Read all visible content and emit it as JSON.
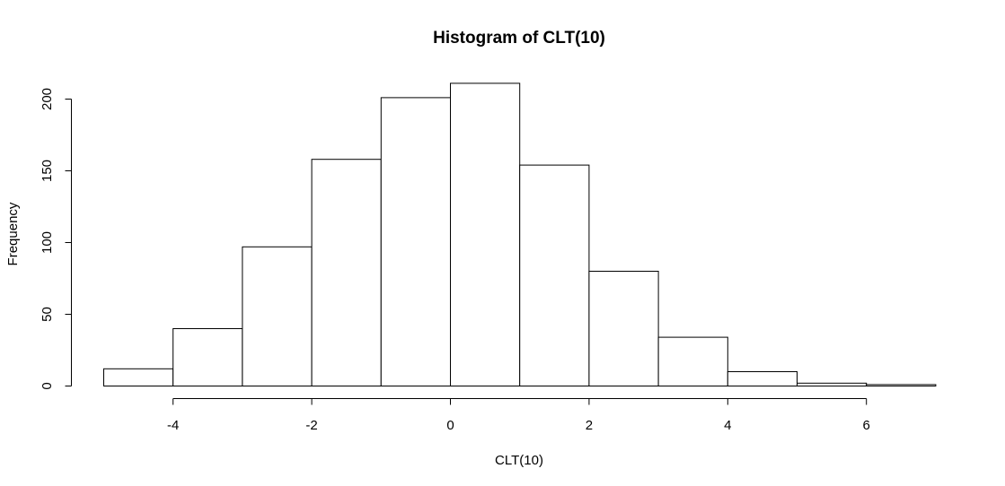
{
  "chart_data": {
    "type": "bar",
    "title": "Histogram of CLT(10)",
    "xlabel": "CLT(10)",
    "ylabel": "Frequency",
    "bins": [
      {
        "from": -5,
        "to": -4,
        "count": 12
      },
      {
        "from": -4,
        "to": -3,
        "count": 40
      },
      {
        "from": -3,
        "to": -2,
        "count": 97
      },
      {
        "from": -2,
        "to": -1,
        "count": 158
      },
      {
        "from": -1,
        "to": 0,
        "count": 201
      },
      {
        "from": 0,
        "to": 1,
        "count": 211
      },
      {
        "from": 1,
        "to": 2,
        "count": 154
      },
      {
        "from": 2,
        "to": 3,
        "count": 80
      },
      {
        "from": 3,
        "to": 4,
        "count": 34
      },
      {
        "from": 4,
        "to": 5,
        "count": 10
      },
      {
        "from": 5,
        "to": 6,
        "count": 2
      },
      {
        "from": 6,
        "to": 7,
        "count": 1
      }
    ],
    "x_ticks": [
      -4,
      -2,
      0,
      2,
      4,
      6
    ],
    "x_tick_labels": [
      "-4",
      "-2",
      "0",
      "2",
      "4",
      "6"
    ],
    "y_ticks": [
      0,
      50,
      100,
      150,
      200
    ],
    "y_tick_labels": [
      "0",
      "50",
      "100",
      "150",
      "200"
    ],
    "xlim": [
      -5,
      7
    ],
    "ylim": [
      0,
      211
    ],
    "grid": false,
    "bar_fill": "#ffffff",
    "bar_stroke": "#000000"
  }
}
